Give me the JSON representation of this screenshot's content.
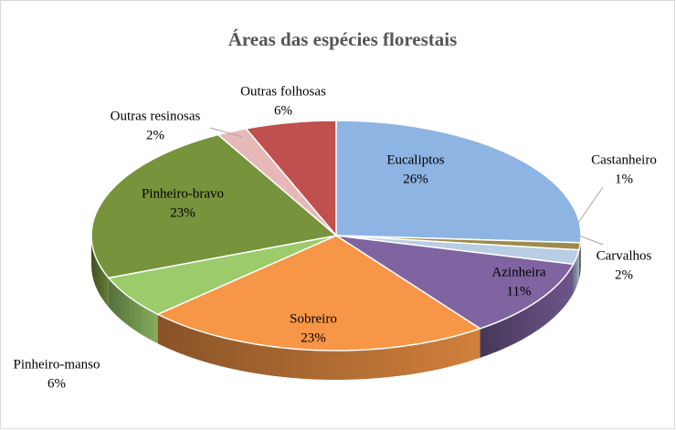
{
  "chart_data": {
    "type": "pie3d",
    "title": "Áreas das espécies florestais",
    "categories": [
      "Eucaliptos",
      "Castanheiro",
      "Carvalhos",
      "Azinheira",
      "Sobreiro",
      "Pinheiro-manso",
      "Pinheiro-bravo",
      "Outras resinosas",
      "Outras folhosas"
    ],
    "values": [
      26,
      1,
      2,
      11,
      23,
      6,
      23,
      2,
      6
    ],
    "value_labels": [
      "26%",
      "1%",
      "2%",
      "11%",
      "23%",
      "6%",
      "23%",
      "2%",
      "6%"
    ],
    "colors": [
      "#8eb4e3",
      "#9c8b4a",
      "#b9cde5",
      "#8064a2",
      "#f79646",
      "#9bcb6b",
      "#77933c",
      "#e6b9b8",
      "#c0504d"
    ]
  }
}
